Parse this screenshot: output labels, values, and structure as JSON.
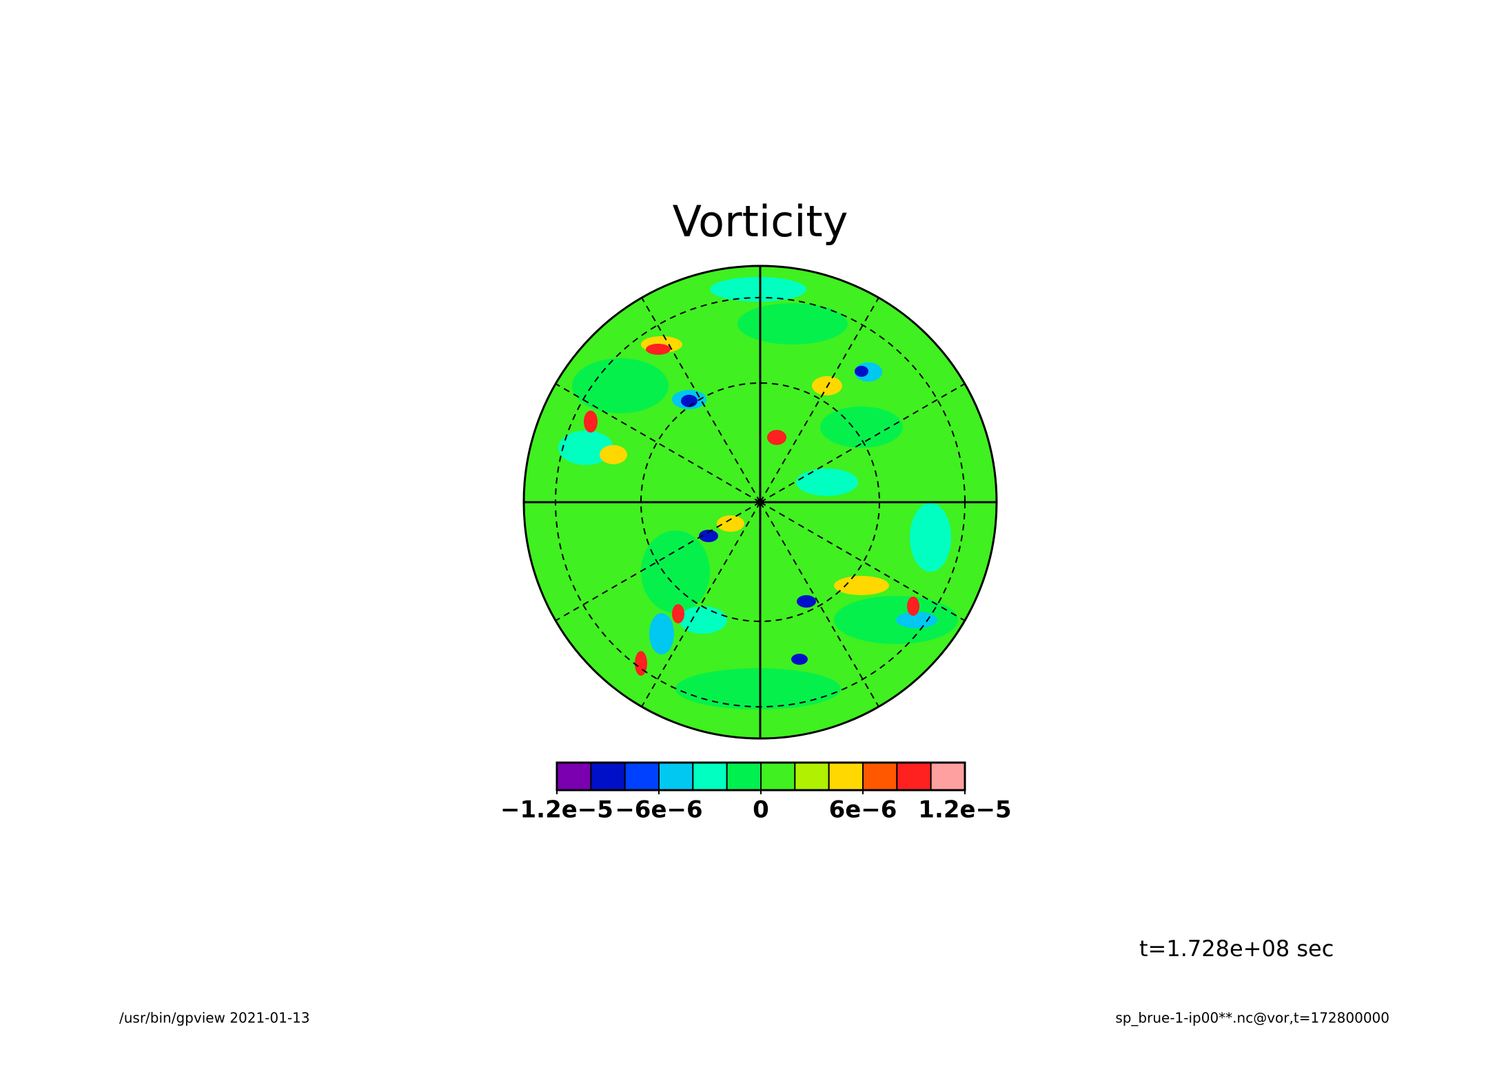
{
  "chart_data": {
    "type": "polar-contour",
    "title": "Vorticity",
    "colorbar": {
      "colors": [
        "#7a00b0",
        "#0010c8",
        "#0040ff",
        "#00c8f0",
        "#00ffc0",
        "#00f050",
        "#40f020",
        "#b0f000",
        "#ffd800",
        "#ff5800",
        "#ff2020",
        "#ffa0a0"
      ],
      "xlim": [
        -1.2e-05,
        1.2e-05
      ],
      "xticks": [
        {
          "value": -1.2e-05,
          "label": "−1.2e−5"
        },
        {
          "value": -6e-06,
          "label": "−6e−6"
        },
        0,
        {
          "value": 6e-06,
          "label": "6e−6"
        },
        {
          "value": 1.2e-05,
          "label": "1.2e−5"
        }
      ]
    },
    "annotations": [
      "t=1.728e+08 sec",
      "/usr/bin/gpview  2021-01-13",
      "sp_brue-1-ip00**.nc@vor,t=172800000"
    ]
  }
}
